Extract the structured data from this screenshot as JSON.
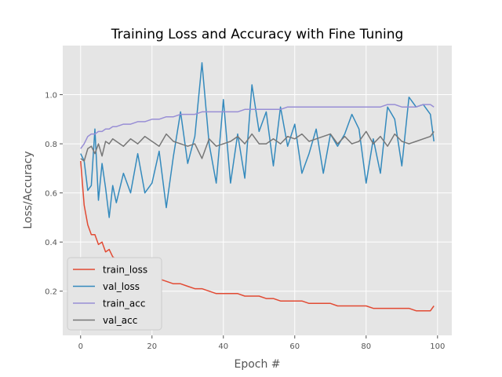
{
  "chart_data": {
    "type": "line",
    "title": "Training Loss and Accuracy with Fine Tuning",
    "xlabel": "Epoch #",
    "ylabel": "Loss/Accuracy",
    "xlim": [
      -5,
      104
    ],
    "ylim": [
      0.02,
      1.2
    ],
    "xticks": [
      0,
      20,
      40,
      60,
      80,
      100
    ],
    "yticks": [
      0.2,
      0.4,
      0.6,
      0.8,
      1.0
    ],
    "xtick_labels": [
      "0",
      "20",
      "40",
      "60",
      "80",
      "100"
    ],
    "ytick_labels": [
      "0.2",
      "0.4",
      "0.6",
      "0.8",
      "1.0"
    ],
    "grid": true,
    "legend_position": "lower-left",
    "series": [
      {
        "name": "train_loss",
        "color": "#E24A33",
        "x": [
          0,
          1,
          2,
          3,
          4,
          5,
          6,
          7,
          8,
          9,
          10,
          12,
          14,
          16,
          18,
          20,
          22,
          24,
          26,
          28,
          30,
          32,
          34,
          36,
          38,
          40,
          42,
          44,
          46,
          48,
          50,
          52,
          54,
          56,
          58,
          60,
          62,
          64,
          66,
          68,
          70,
          72,
          74,
          76,
          78,
          80,
          82,
          84,
          86,
          88,
          90,
          92,
          94,
          96,
          98,
          99
        ],
        "values": [
          0.73,
          0.55,
          0.47,
          0.43,
          0.43,
          0.39,
          0.4,
          0.36,
          0.37,
          0.34,
          0.33,
          0.31,
          0.3,
          0.28,
          0.27,
          0.26,
          0.25,
          0.24,
          0.23,
          0.23,
          0.22,
          0.21,
          0.21,
          0.2,
          0.19,
          0.19,
          0.19,
          0.19,
          0.18,
          0.18,
          0.18,
          0.17,
          0.17,
          0.16,
          0.16,
          0.16,
          0.16,
          0.15,
          0.15,
          0.15,
          0.15,
          0.14,
          0.14,
          0.14,
          0.14,
          0.14,
          0.13,
          0.13,
          0.13,
          0.13,
          0.13,
          0.13,
          0.12,
          0.12,
          0.12,
          0.14
        ]
      },
      {
        "name": "val_loss",
        "color": "#348ABD",
        "x": [
          0,
          1,
          2,
          3,
          4,
          5,
          6,
          7,
          8,
          9,
          10,
          12,
          14,
          16,
          18,
          20,
          22,
          24,
          26,
          28,
          30,
          32,
          34,
          36,
          38,
          40,
          42,
          44,
          46,
          48,
          50,
          52,
          54,
          56,
          58,
          60,
          62,
          64,
          66,
          68,
          70,
          72,
          74,
          76,
          78,
          80,
          82,
          84,
          86,
          88,
          90,
          92,
          94,
          96,
          98,
          99
        ],
        "values": [
          0.76,
          0.73,
          0.61,
          0.63,
          0.86,
          0.57,
          0.72,
          0.62,
          0.5,
          0.63,
          0.56,
          0.68,
          0.6,
          0.76,
          0.6,
          0.64,
          0.77,
          0.54,
          0.75,
          0.93,
          0.72,
          0.83,
          1.13,
          0.8,
          0.64,
          0.98,
          0.64,
          0.84,
          0.66,
          1.04,
          0.85,
          0.93,
          0.71,
          0.95,
          0.79,
          0.88,
          0.68,
          0.76,
          0.86,
          0.68,
          0.84,
          0.79,
          0.84,
          0.92,
          0.86,
          0.64,
          0.82,
          0.68,
          0.95,
          0.9,
          0.71,
          0.99,
          0.95,
          0.96,
          0.92,
          0.81
        ]
      },
      {
        "name": "train_acc",
        "color": "#988ED5",
        "x": [
          0,
          1,
          2,
          3,
          4,
          5,
          6,
          7,
          8,
          9,
          10,
          12,
          14,
          16,
          18,
          20,
          22,
          24,
          26,
          28,
          30,
          32,
          34,
          36,
          38,
          40,
          42,
          44,
          46,
          48,
          50,
          52,
          54,
          56,
          58,
          60,
          62,
          64,
          66,
          68,
          70,
          72,
          74,
          76,
          78,
          80,
          82,
          84,
          86,
          88,
          90,
          92,
          94,
          96,
          98,
          99
        ],
        "values": [
          0.78,
          0.8,
          0.83,
          0.84,
          0.84,
          0.85,
          0.85,
          0.86,
          0.86,
          0.87,
          0.87,
          0.88,
          0.88,
          0.89,
          0.89,
          0.9,
          0.9,
          0.91,
          0.91,
          0.92,
          0.92,
          0.92,
          0.93,
          0.93,
          0.93,
          0.93,
          0.93,
          0.93,
          0.94,
          0.94,
          0.94,
          0.94,
          0.94,
          0.94,
          0.95,
          0.95,
          0.95,
          0.95,
          0.95,
          0.95,
          0.95,
          0.95,
          0.95,
          0.95,
          0.95,
          0.95,
          0.95,
          0.95,
          0.96,
          0.96,
          0.95,
          0.95,
          0.95,
          0.96,
          0.96,
          0.95
        ]
      },
      {
        "name": "val_acc",
        "color": "#777777",
        "x": [
          0,
          1,
          2,
          3,
          4,
          5,
          6,
          7,
          8,
          9,
          10,
          12,
          14,
          16,
          18,
          20,
          22,
          24,
          26,
          28,
          30,
          32,
          34,
          36,
          38,
          40,
          42,
          44,
          46,
          48,
          50,
          52,
          54,
          56,
          58,
          60,
          62,
          64,
          66,
          68,
          70,
          72,
          74,
          76,
          78,
          80,
          82,
          84,
          86,
          88,
          90,
          92,
          94,
          96,
          98,
          99
        ],
        "values": [
          0.74,
          0.73,
          0.78,
          0.79,
          0.76,
          0.8,
          0.75,
          0.81,
          0.8,
          0.82,
          0.81,
          0.79,
          0.82,
          0.8,
          0.83,
          0.81,
          0.79,
          0.84,
          0.81,
          0.8,
          0.79,
          0.8,
          0.74,
          0.82,
          0.79,
          0.8,
          0.81,
          0.83,
          0.8,
          0.84,
          0.8,
          0.8,
          0.82,
          0.8,
          0.83,
          0.82,
          0.84,
          0.81,
          0.82,
          0.83,
          0.84,
          0.8,
          0.83,
          0.8,
          0.81,
          0.85,
          0.8,
          0.83,
          0.79,
          0.84,
          0.81,
          0.8,
          0.81,
          0.82,
          0.83,
          0.85
        ]
      }
    ]
  }
}
